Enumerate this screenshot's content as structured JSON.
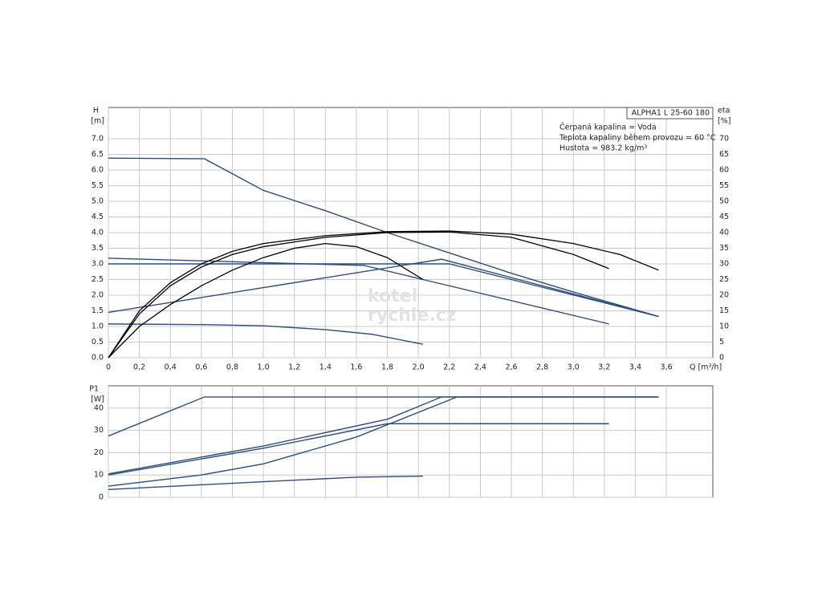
{
  "chart_data": [
    {
      "type": "line",
      "x_label": "Q [m³/h]",
      "y_label": "H",
      "y_unit": "[m]",
      "y2_label": "eta",
      "y2_unit": "[%]",
      "legend_title": "ALPHA1 L 25-60  180",
      "notes": [
        "Čerpaná kapalina = Voda",
        "Teplota kapaliny během provozu = 60 °C",
        "Hustota = 983.2 kg/m³"
      ],
      "watermark": [
        "kotel",
        "rychle.cz"
      ],
      "xlim": [
        0,
        3.9
      ],
      "ylim": [
        0,
        8
      ],
      "y2lim": [
        0,
        80
      ],
      "grid": true,
      "xticks": [
        0,
        {
          "value": 0.2,
          "label": "0,2"
        },
        {
          "value": 0.4,
          "label": "0,4"
        },
        {
          "value": 0.6,
          "label": "0,6"
        },
        {
          "value": 0.8,
          "label": "0,8"
        },
        {
          "value": 1.0,
          "label": "1,0"
        },
        {
          "value": 1.2,
          "label": "1,2"
        },
        {
          "value": 1.4,
          "label": "1,4"
        },
        {
          "value": 1.6,
          "label": "1,6"
        },
        {
          "value": 1.8,
          "label": "1,8"
        },
        {
          "value": 2.0,
          "label": "2,0"
        },
        {
          "value": 2.2,
          "label": "2,2"
        },
        {
          "value": 2.4,
          "label": "2,4"
        },
        {
          "value": 2.6,
          "label": "2,6"
        },
        {
          "value": 2.8,
          "label": "2,8"
        },
        {
          "value": 3.0,
          "label": "3,0"
        },
        {
          "value": 3.2,
          "label": "3,2"
        },
        {
          "value": 3.4,
          "label": "3,4"
        },
        {
          "value": 3.6,
          "label": "3,6"
        }
      ],
      "yticks": [
        {
          "value": 0,
          "label": "0.0"
        },
        {
          "value": 0.5,
          "label": "0.5"
        },
        {
          "value": 1,
          "label": "1.0"
        },
        {
          "value": 1.5,
          "label": "1.5"
        },
        {
          "value": 2,
          "label": "2.0"
        },
        {
          "value": 2.5,
          "label": "2.5"
        },
        {
          "value": 3,
          "label": "3.0"
        },
        {
          "value": 3.5,
          "label": "3.5"
        },
        {
          "value": 4,
          "label": "4.0"
        },
        {
          "value": 4.5,
          "label": "4.5"
        },
        {
          "value": 5,
          "label": "5.0"
        },
        {
          "value": 5.5,
          "label": "5.5"
        },
        {
          "value": 6,
          "label": "6.0"
        },
        {
          "value": 6.5,
          "label": "6.5"
        },
        {
          "value": 7,
          "label": "7.0"
        }
      ],
      "y2ticks": [
        0,
        5,
        10,
        15,
        20,
        25,
        30,
        35,
        40,
        45,
        50,
        55,
        60,
        65,
        70
      ],
      "series": [
        {
          "color": "#2b4f7c",
          "x": [
            0,
            0.62,
            1.0,
            1.4,
            1.8,
            2.2,
            2.6,
            3.0,
            3.55
          ],
          "values": [
            6.38,
            6.36,
            5.35,
            4.7,
            4.0,
            3.35,
            2.7,
            2.1,
            1.32
          ]
        },
        {
          "color": "#2b4f7c",
          "x": [
            0,
            1.65,
            2.03,
            3.23
          ],
          "values": [
            3.18,
            2.95,
            2.5,
            1.08
          ]
        },
        {
          "color": "#2b4f7c",
          "x": [
            0,
            2.2,
            3.55
          ],
          "values": [
            3.0,
            3.0,
            1.32
          ]
        },
        {
          "color": "#2b4f7c",
          "x": [
            0,
            2.15,
            3.55
          ],
          "values": [
            1.45,
            3.15,
            1.32
          ]
        },
        {
          "color": "#2b4f7c",
          "x": [
            0,
            0.6,
            1.0,
            1.4,
            1.7,
            2.03
          ],
          "values": [
            1.08,
            1.06,
            1.02,
            0.9,
            0.75,
            0.43
          ]
        },
        {
          "color": "#000000",
          "axis": "y2",
          "x": [
            0,
            0.2,
            0.4,
            0.6,
            0.8,
            1.0,
            1.4,
            1.8,
            2.2,
            2.6,
            3.0,
            3.3,
            3.55
          ],
          "values": [
            0,
            15,
            24,
            30,
            34,
            36.5,
            39,
            40.3,
            40.5,
            39.5,
            36.5,
            33,
            28
          ]
        },
        {
          "color": "#000000",
          "axis": "y2",
          "x": [
            0,
            0.2,
            0.4,
            0.6,
            0.8,
            1.0,
            1.4,
            1.8,
            2.2,
            2.6,
            3.0,
            3.23
          ],
          "values": [
            0,
            14,
            23,
            29,
            33,
            35.5,
            38.5,
            40,
            40.2,
            38.5,
            33,
            28.5
          ]
        },
        {
          "color": "#000000",
          "axis": "y2",
          "x": [
            0,
            0.2,
            0.4,
            0.6,
            0.8,
            1.0,
            1.2,
            1.4,
            1.6,
            1.8,
            2.03
          ],
          "values": [
            0,
            10,
            17,
            23,
            28,
            32,
            35,
            36.5,
            35.5,
            32,
            25
          ]
        }
      ]
    },
    {
      "type": "line",
      "y_label": "P1",
      "y_unit": "[W]",
      "xlim": [
        0,
        3.9
      ],
      "ylim": [
        0,
        50
      ],
      "grid": true,
      "xticks": [
        0,
        0.2,
        0.4,
        0.6,
        0.8,
        1.0,
        1.2,
        1.4,
        1.6,
        1.8,
        2.0,
        2.2,
        2.4,
        2.6,
        2.8,
        3.0,
        3.2,
        3.4,
        3.6
      ],
      "yticks": [
        0,
        10,
        20,
        30,
        40
      ],
      "series": [
        {
          "color": "#2b4f7c",
          "x": [
            0,
            0.62,
            3.55
          ],
          "values": [
            27.5,
            45,
            45
          ]
        },
        {
          "color": "#2b4f7c",
          "x": [
            0,
            1.0,
            1.8,
            2.15,
            3.55
          ],
          "values": [
            10.5,
            23,
            35,
            45,
            45
          ]
        },
        {
          "color": "#2b4f7c",
          "x": [
            0,
            1.0,
            1.8,
            3.23
          ],
          "values": [
            10,
            22,
            33,
            33
          ]
        },
        {
          "color": "#2b4f7c",
          "x": [
            0,
            0.6,
            1.0,
            1.6,
            2.25,
            3.55
          ],
          "values": [
            5,
            10,
            15,
            27,
            45,
            45
          ]
        },
        {
          "color": "#2b4f7c",
          "x": [
            0,
            1.0,
            1.6,
            2.03
          ],
          "values": [
            3.5,
            7,
            9,
            9.5
          ]
        }
      ]
    }
  ]
}
